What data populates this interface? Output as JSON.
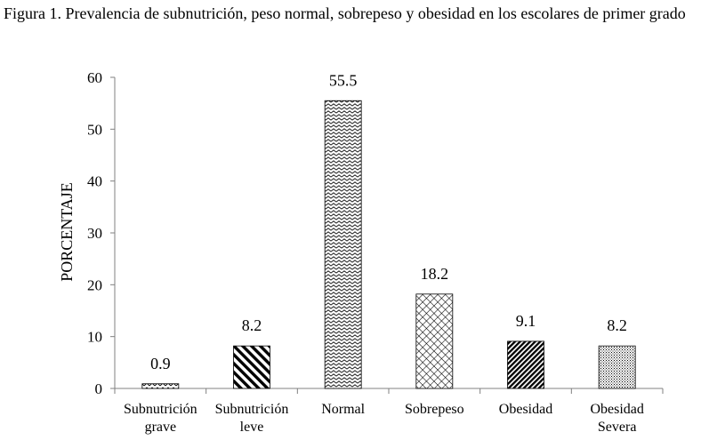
{
  "caption": "Figura 1. Prevalencia de subnutrición, peso normal, sobrepeso y obesidad en los escolares de primer grado",
  "chart_data": {
    "type": "bar",
    "title": "",
    "xlabel": "",
    "ylabel": "PORCENTAJE",
    "ylim": [
      0,
      60
    ],
    "yticks": [
      0,
      10,
      20,
      30,
      40,
      50,
      60
    ],
    "grid": false,
    "legend": "none",
    "categories": [
      [
        "Subnutrición",
        "grave"
      ],
      [
        "Subnutrición",
        "leve"
      ],
      [
        "Normal"
      ],
      [
        "Sobrepeso"
      ],
      [
        "Obesidad"
      ],
      [
        "Obesidad",
        "Severa"
      ]
    ],
    "values": [
      0.9,
      8.2,
      55.5,
      18.2,
      9.1,
      8.2
    ],
    "data_labels": [
      "0.9",
      "8.2",
      "55.5",
      "18.2",
      "9.1",
      "8.2"
    ],
    "bar_patterns": [
      "zigzag-light",
      "diagonal-wide",
      "zigzag-dense",
      "crosshatch",
      "diagonal-dense",
      "dots"
    ],
    "colors": {
      "bar_outline": "#000000",
      "pattern": "#000000",
      "axis": "#808080"
    }
  }
}
